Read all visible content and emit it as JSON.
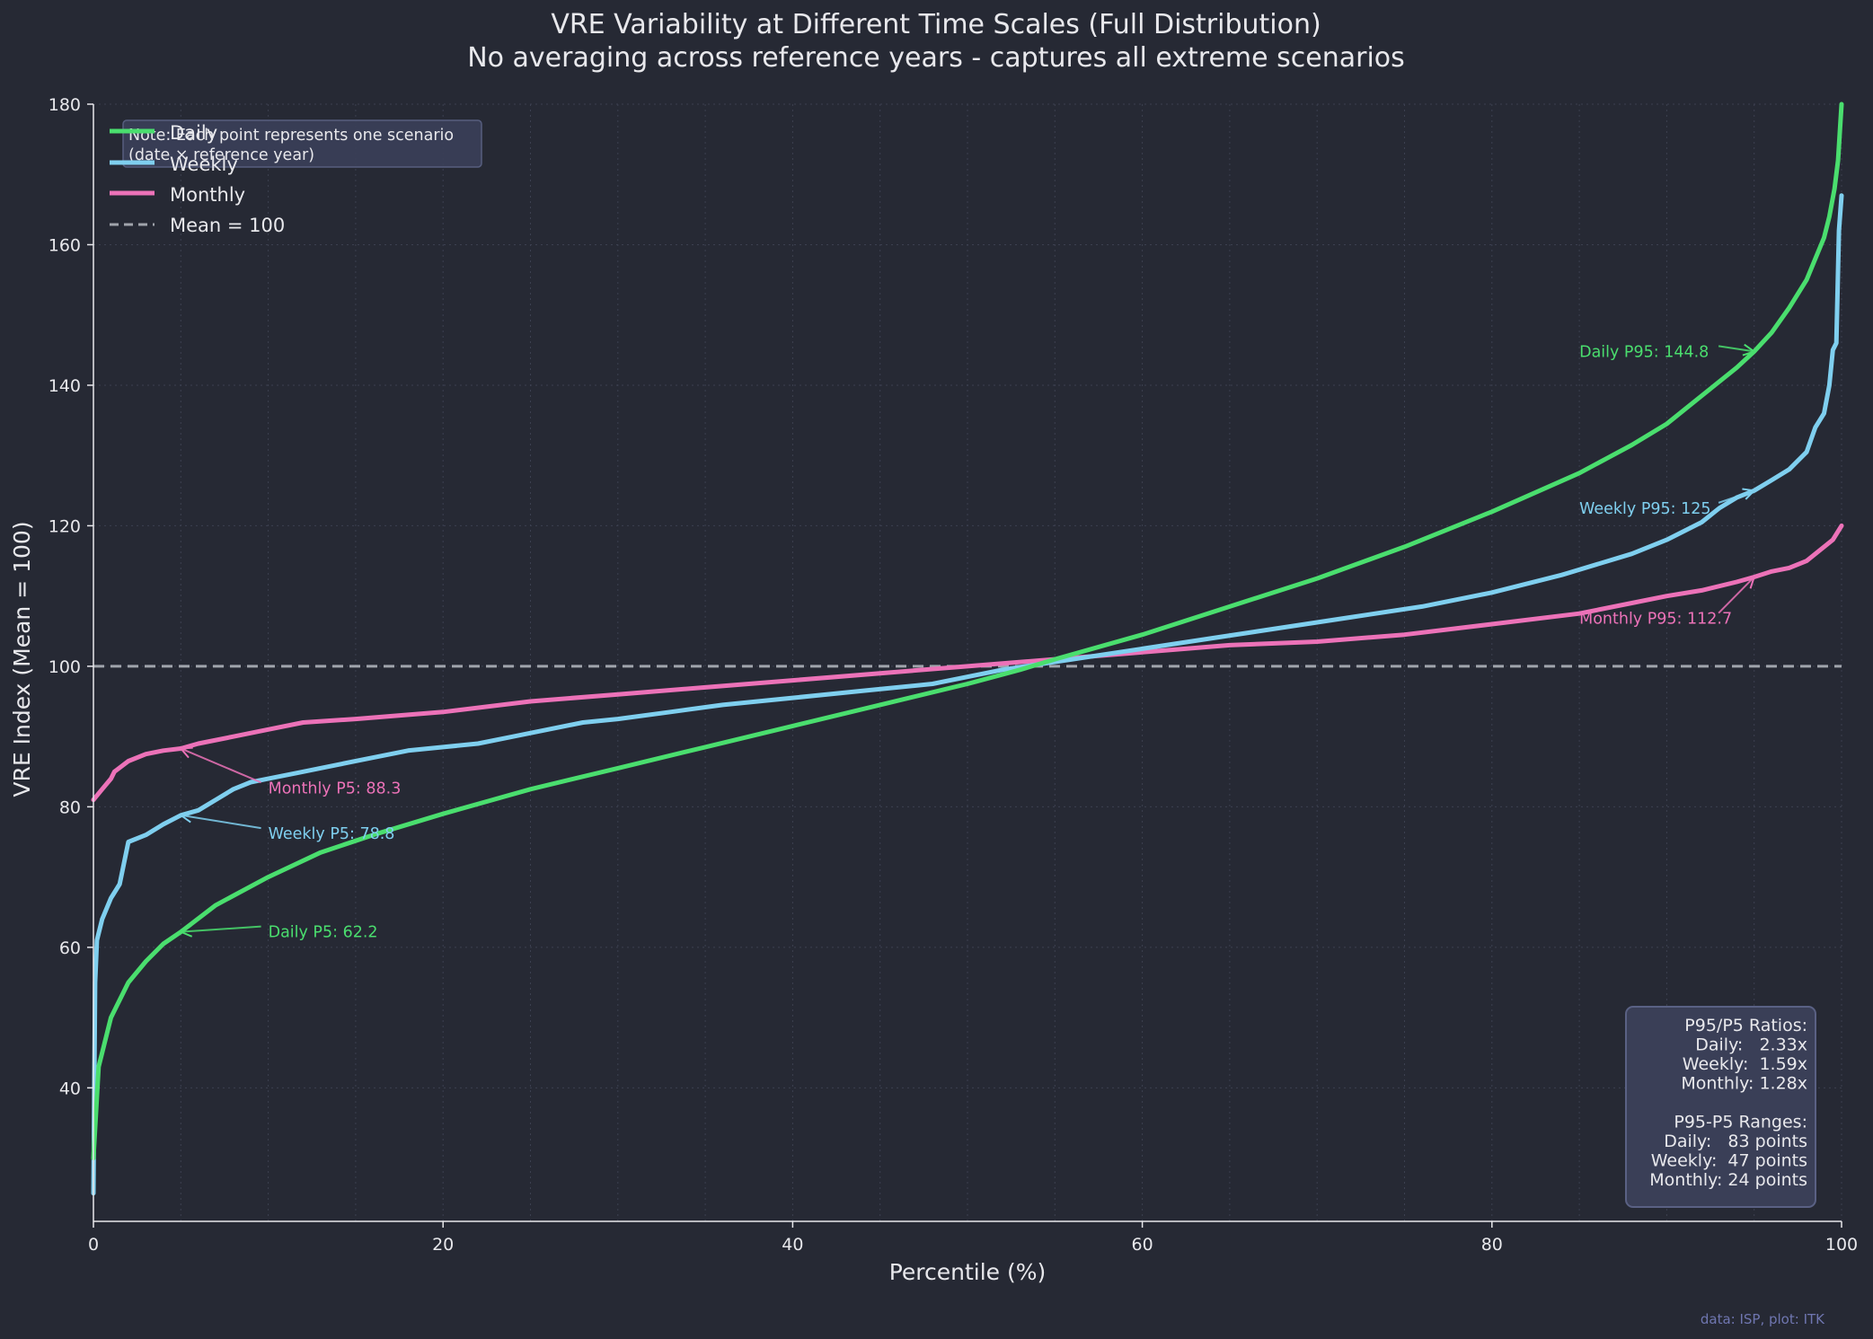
{
  "chart_data": {
    "type": "line",
    "title": "VRE Variability at Different Time Scales (Full Distribution)",
    "subtitle": "No averaging across reference years - captures all extreme scenarios",
    "xlabel": "Percentile (%)",
    "ylabel": "VRE Index (Mean = 100)",
    "xlim": [
      0,
      100
    ],
    "ylim": [
      21,
      180
    ],
    "xticks": [
      0,
      20,
      40,
      60,
      80,
      100
    ],
    "yticks": [
      40,
      60,
      80,
      100,
      120,
      140,
      160,
      180
    ],
    "grid": true,
    "legend_position": "top-left",
    "series": [
      {
        "name": "Daily",
        "color": "#4ade6e",
        "x": [
          0,
          0.3,
          1,
          2,
          3,
          4,
          5,
          7,
          10,
          13,
          16,
          20,
          25,
          30,
          35,
          40,
          45,
          50,
          53,
          55,
          60,
          65,
          70,
          75,
          80,
          85,
          88,
          90,
          92,
          94,
          95,
          96,
          97,
          98,
          98.5,
          99,
          99.3,
          99.6,
          99.8,
          100
        ],
        "y": [
          30,
          43,
          50,
          55,
          58,
          60.5,
          62.2,
          66,
          70,
          73.5,
          76,
          79,
          82.5,
          85.5,
          88.5,
          91.5,
          94.5,
          97.5,
          99.5,
          101,
          104.5,
          108.5,
          112.5,
          117,
          122,
          127.5,
          131.5,
          134.5,
          138.5,
          142.5,
          144.8,
          147.5,
          151,
          155,
          158,
          161,
          164,
          168,
          172,
          180
        ]
      },
      {
        "name": "Weekly",
        "color": "#7fcfef",
        "x": [
          0,
          0.1,
          0.2,
          0.5,
          1,
          1.5,
          2,
          3,
          4,
          5,
          6,
          7,
          8,
          9,
          10,
          12,
          14,
          16,
          18,
          20,
          22,
          24,
          26,
          28,
          30,
          33,
          36,
          40,
          44,
          48,
          52,
          56,
          60,
          64,
          68,
          72,
          76,
          80,
          84,
          88,
          90,
          92,
          93,
          94,
          95,
          96,
          97,
          98,
          98.5,
          99,
          99.3,
          99.5,
          99.7,
          99.85,
          100
        ],
        "y": [
          25,
          55,
          61,
          64,
          67,
          69,
          75,
          76,
          77.5,
          78.8,
          79.5,
          81,
          82.5,
          83.5,
          84,
          85,
          86,
          87,
          88,
          88.5,
          89,
          90,
          91,
          92,
          92.5,
          93.5,
          94.5,
          95.5,
          96.5,
          97.5,
          99.5,
          101,
          102.5,
          104,
          105.5,
          107,
          108.5,
          110.5,
          113,
          116,
          118,
          120.5,
          122.5,
          124,
          125,
          126.5,
          128,
          130.5,
          134,
          136,
          140,
          145,
          146,
          162,
          167
        ]
      },
      {
        "name": "Monthly",
        "color": "#ec72b8",
        "x": [
          0,
          0.5,
          1,
          1.2,
          2,
          3,
          4,
          5,
          6,
          8,
          10,
          12,
          15,
          20,
          25,
          30,
          35,
          40,
          45,
          50,
          55,
          60,
          65,
          70,
          75,
          80,
          85,
          88,
          90,
          92,
          94,
          95,
          96,
          97,
          98,
          99,
          99.5,
          100
        ],
        "y": [
          81,
          82.5,
          84,
          85,
          86.5,
          87.5,
          88,
          88.3,
          89,
          90,
          91,
          92,
          92.5,
          93.5,
          95,
          96,
          97,
          98,
          99,
          100,
          101,
          102,
          103,
          103.5,
          104.5,
          106,
          107.5,
          109,
          110,
          110.8,
          112,
          112.7,
          113.5,
          114,
          115,
          117,
          118,
          120
        ]
      },
      {
        "name": "Mean = 100",
        "color": "#a0a4ac",
        "style": "dashed",
        "x": [
          0,
          100
        ],
        "y": [
          100,
          100
        ]
      }
    ],
    "annotations": [
      {
        "text": "Daily P95: 144.8",
        "point": [
          95,
          144.8
        ],
        "text_at": [
          85,
          144.8
        ],
        "color": "#4ade6e"
      },
      {
        "text": "Weekly P95: 125",
        "point": [
          95,
          125
        ],
        "text_at": [
          85,
          122.5
        ],
        "color": "#7fcfef"
      },
      {
        "text": "Monthly P95: 112.7",
        "point": [
          95,
          112.7
        ],
        "text_at": [
          85,
          106.8
        ],
        "color": "#ec72b8"
      },
      {
        "text": "Monthly P5: 88.3",
        "point": [
          5,
          88.3
        ],
        "text_at": [
          10,
          82.7
        ],
        "color": "#ec72b8"
      },
      {
        "text": "Weekly P5: 78.8",
        "point": [
          5,
          78.8
        ],
        "text_at": [
          10,
          76.2
        ],
        "color": "#7fcfef"
      },
      {
        "text": "Daily P5: 62.2",
        "point": [
          5,
          62.2
        ],
        "text_at": [
          10,
          62.2
        ],
        "color": "#4ade6e"
      }
    ],
    "note_box": {
      "lines": [
        "Note: Each point represents one scenario",
        "(date × reference year)"
      ]
    },
    "stats_box": {
      "lines": [
        "P95/P5 Ratios:",
        "Daily:   2.33x",
        "Weekly:  1.59x",
        "Monthly: 1.28x",
        "",
        "P95-P5 Ranges:",
        "Daily:   83 points",
        "Weekly:  47 points",
        "Monthly: 24 points"
      ]
    },
    "credit": "data: ISP, plot: ITK"
  }
}
